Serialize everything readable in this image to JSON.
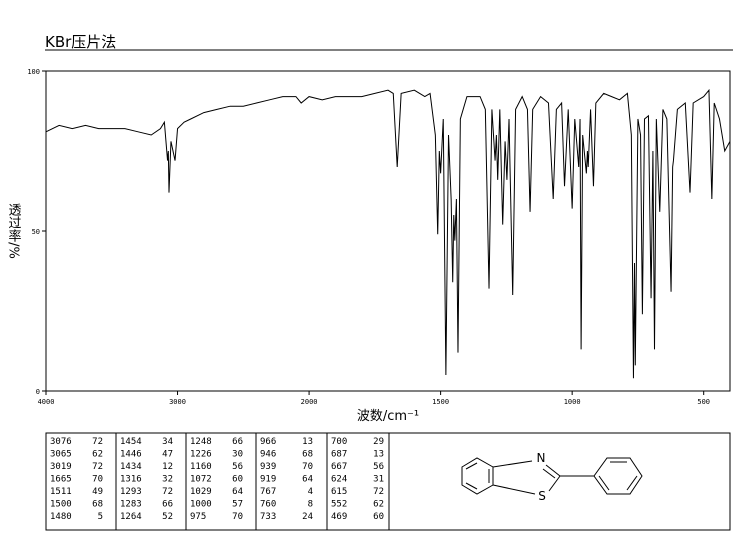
{
  "chart_data": {
    "type": "line",
    "title": "KBr压片法",
    "x_label": "波数/cm⁻¹",
    "y_label": "透过率/%",
    "xlim": [
      4000,
      400
    ],
    "xticks": [
      4000,
      3000,
      2000,
      1500,
      1000,
      500
    ],
    "x_scale_break": 2000,
    "x_scale_ratio": 2,
    "ylim": [
      0,
      100
    ],
    "yticks": [
      0,
      50,
      100
    ],
    "series": [
      {
        "color": "#000000",
        "x": [
          4000,
          3900,
          3800,
          3700,
          3600,
          3500,
          3400,
          3300,
          3200,
          3130,
          3100,
          3076,
          3070,
          3065,
          3050,
          3019,
          3000,
          2950,
          2900,
          2800,
          2700,
          2600,
          2500,
          2400,
          2300,
          2200,
          2100,
          2060,
          2000,
          1950,
          1900,
          1800,
          1750,
          1700,
          1680,
          1665,
          1650,
          1600,
          1560,
          1540,
          1520,
          1511,
          1505,
          1500,
          1490,
          1480,
          1470,
          1460,
          1454,
          1450,
          1446,
          1440,
          1434,
          1425,
          1400,
          1350,
          1330,
          1316,
          1305,
          1293,
          1288,
          1283,
          1275,
          1264,
          1255,
          1248,
          1240,
          1226,
          1215,
          1190,
          1170,
          1160,
          1150,
          1120,
          1090,
          1072,
          1060,
          1040,
          1029,
          1015,
          1000,
          990,
          975,
          970,
          966,
          960,
          946,
          942,
          939,
          930,
          919,
          910,
          880,
          850,
          820,
          790,
          775,
          767,
          763,
          760,
          750,
          740,
          733,
          725,
          710,
          700,
          693,
          687,
          680,
          667,
          655,
          640,
          624,
          618,
          615,
          600,
          570,
          552,
          540,
          500,
          480,
          469,
          460,
          440,
          420,
          400
        ],
        "values": [
          81,
          83,
          82,
          83,
          82,
          82,
          82,
          81,
          80,
          82,
          84,
          72,
          75,
          62,
          78,
          72,
          82,
          84,
          85,
          87,
          88,
          89,
          89,
          90,
          91,
          92,
          92,
          90,
          92,
          91,
          92,
          92,
          93,
          94,
          93,
          70,
          93,
          94,
          92,
          93,
          80,
          49,
          75,
          68,
          85,
          5,
          80,
          60,
          34,
          55,
          47,
          60,
          12,
          85,
          92,
          92,
          88,
          32,
          88,
          72,
          80,
          66,
          88,
          52,
          78,
          66,
          85,
          30,
          88,
          92,
          88,
          56,
          88,
          92,
          90,
          60,
          88,
          90,
          64,
          88,
          57,
          85,
          70,
          85,
          13,
          80,
          68,
          75,
          70,
          88,
          64,
          90,
          93,
          92,
          91,
          93,
          80,
          4,
          40,
          8,
          85,
          80,
          24,
          85,
          86,
          29,
          75,
          13,
          85,
          56,
          88,
          85,
          31,
          70,
          72,
          88,
          90,
          62,
          90,
          92,
          94,
          60,
          90,
          85,
          75,
          78
        ]
      }
    ]
  },
  "peak_table": [
    [
      3076,
      72
    ],
    [
      3065,
      62
    ],
    [
      3019,
      72
    ],
    [
      1665,
      70
    ],
    [
      1511,
      49
    ],
    [
      1500,
      68
    ],
    [
      1480,
      5
    ],
    [
      1454,
      34
    ],
    [
      1446,
      47
    ],
    [
      1434,
      12
    ],
    [
      1316,
      32
    ],
    [
      1293,
      72
    ],
    [
      1283,
      66
    ],
    [
      1264,
      52
    ],
    [
      1248,
      66
    ],
    [
      1226,
      30
    ],
    [
      1160,
      56
    ],
    [
      1072,
      60
    ],
    [
      1029,
      64
    ],
    [
      1000,
      57
    ],
    [
      975,
      70
    ],
    [
      966,
      13
    ],
    [
      946,
      68
    ],
    [
      939,
      70
    ],
    [
      919,
      64
    ],
    [
      767,
      4
    ],
    [
      760,
      8
    ],
    [
      733,
      24
    ],
    [
      700,
      29
    ],
    [
      687,
      13
    ],
    [
      667,
      56
    ],
    [
      624,
      31
    ],
    [
      615,
      72
    ],
    [
      552,
      62
    ],
    [
      469,
      60
    ]
  ],
  "structure": {
    "atoms": [
      "N",
      "S"
    ]
  }
}
